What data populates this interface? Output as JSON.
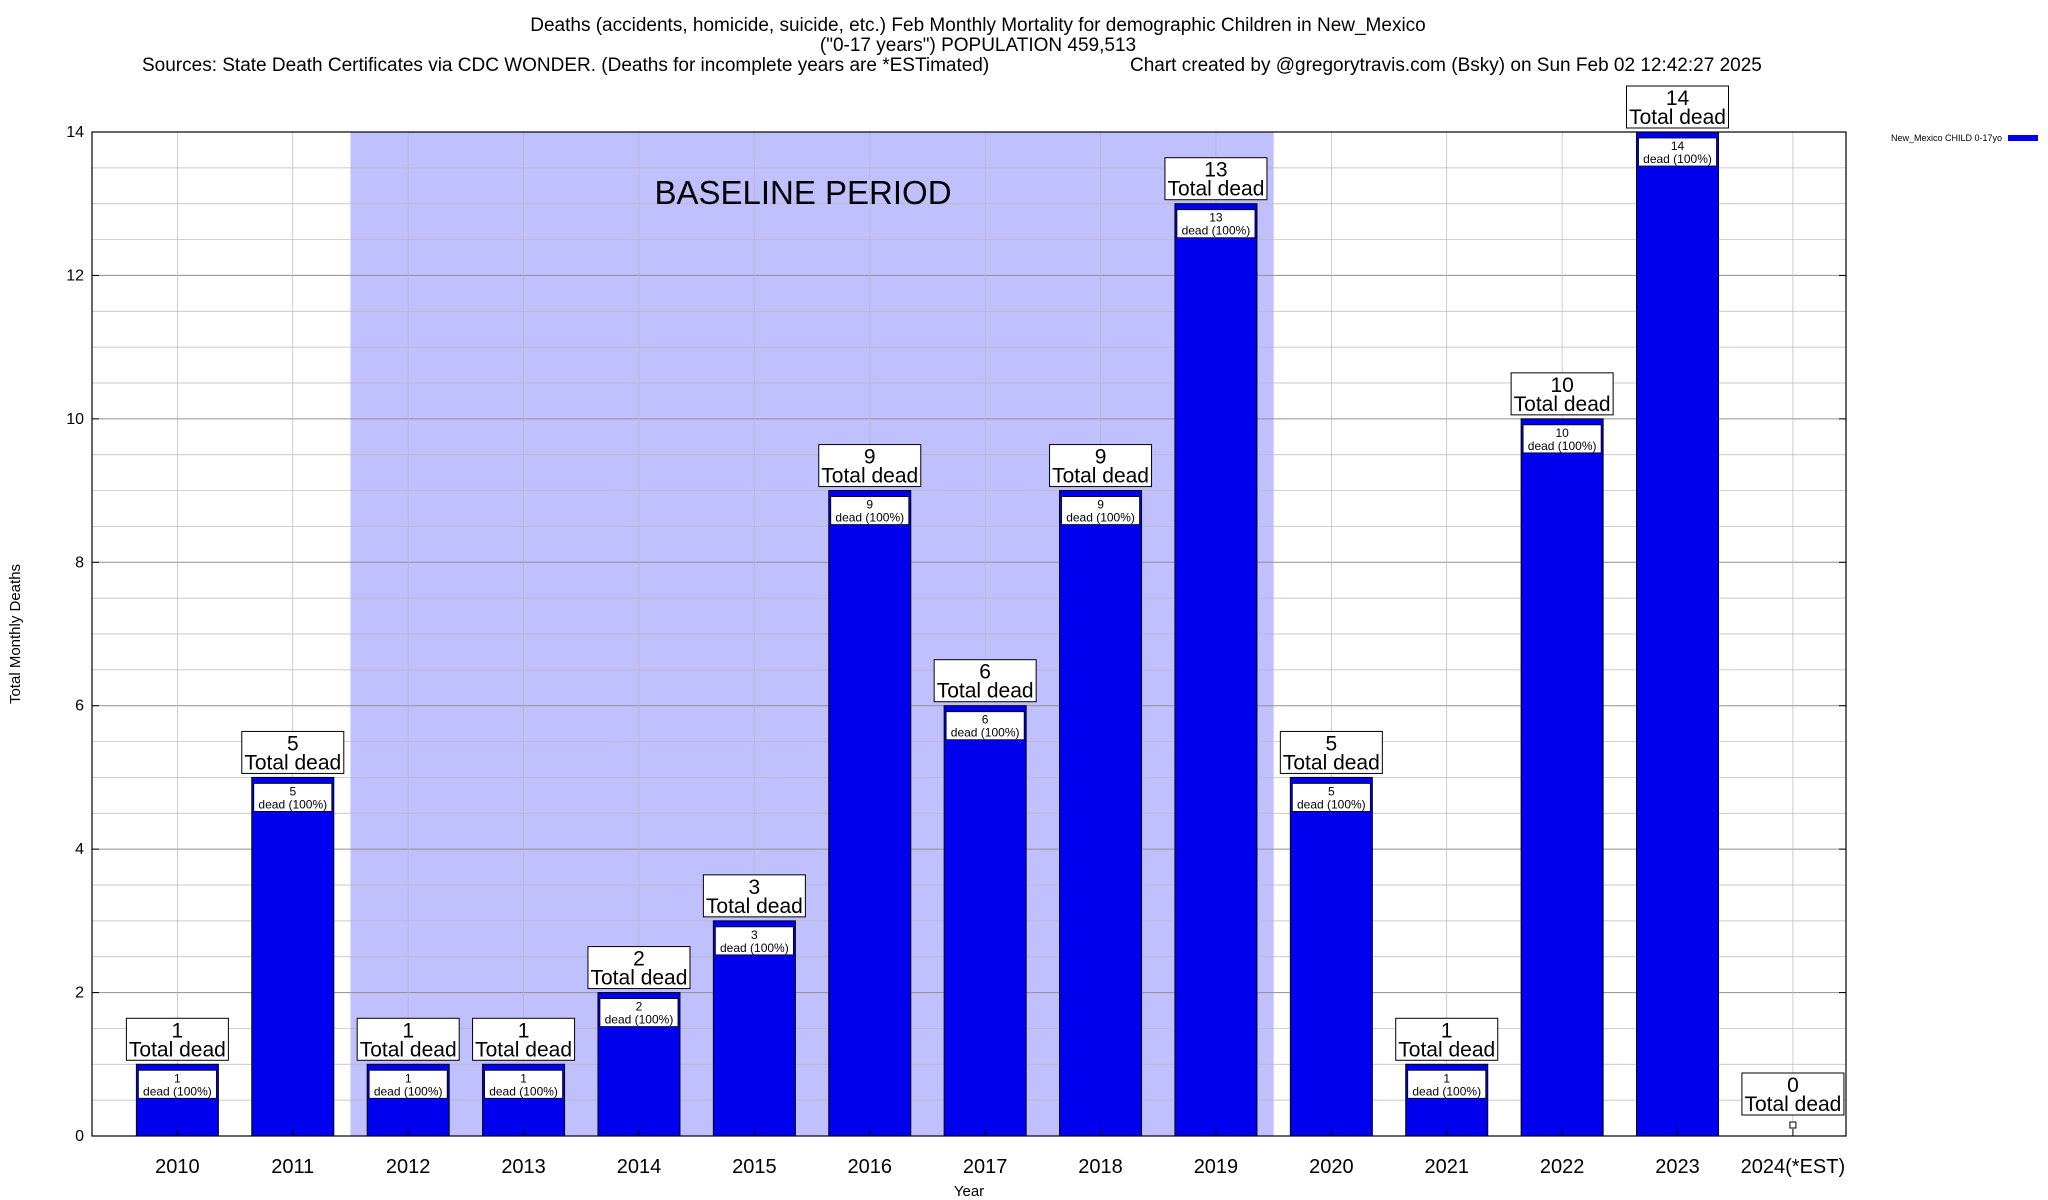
{
  "chart_data": {
    "type": "bar",
    "title": "Deaths (accidents, homicide, suicide, etc.) Feb Monthly Mortality for demographic Children in New_Mexico",
    "subtitle": "(\"0-17 years\") POPULATION 459,513",
    "source": "Sources: State Death Certificates via CDC WONDER. (Deaths for incomplete years are *ESTimated)",
    "credit": "Chart created by @gregorytravis.com (Bsky) on Sun Feb 02 12:42:27 2025",
    "xlabel": "Year",
    "ylabel": "Total Monthly Deaths",
    "ylim": [
      0,
      14
    ],
    "yticks": [
      0,
      2,
      4,
      6,
      8,
      10,
      12,
      14
    ],
    "grid": true,
    "legend_position": "top-right",
    "categories": [
      "2010",
      "2011",
      "2012",
      "2013",
      "2014",
      "2015",
      "2016",
      "2017",
      "2018",
      "2019",
      "2020",
      "2021",
      "2022",
      "2023",
      "2024(*EST)"
    ],
    "series": [
      {
        "name": "New_Mexico CHILD 0-17yo",
        "color": "#0000ee",
        "values": [
          1,
          5,
          1,
          1,
          2,
          3,
          9,
          6,
          9,
          13,
          5,
          1,
          10,
          14,
          0
        ]
      }
    ],
    "total_label_word": "Total dead",
    "inner_label_suffix": "dead (100%)",
    "baseline_period": {
      "label": "BASELINE PERIOD",
      "start": "2012",
      "end": "2019",
      "color": "#c0c0ff"
    }
  }
}
